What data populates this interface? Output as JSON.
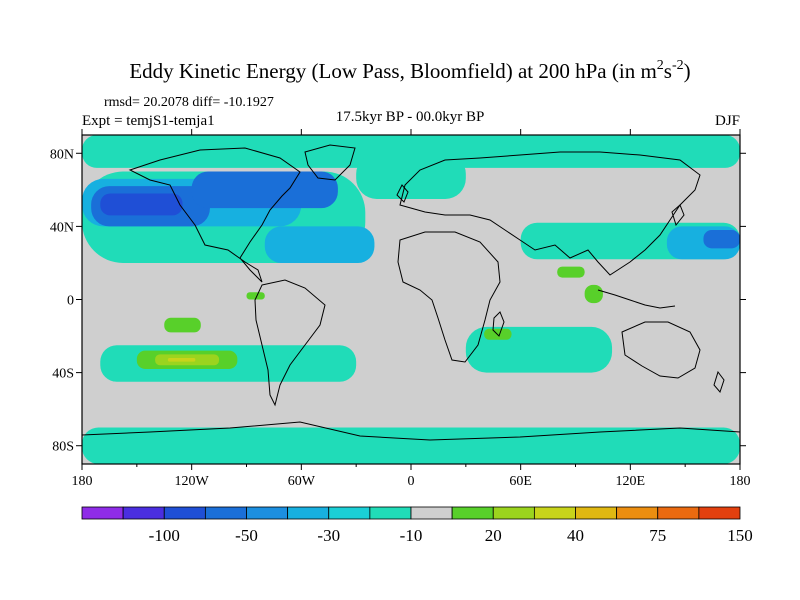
{
  "chart_data": {
    "type": "heatmap",
    "title": "Eddy Kinetic Energy (Low Pass, Bloomfield) at 200 hPa (in m",
    "title_units": {
      "sup1": "2",
      "mid": "s",
      "sup2": "-2",
      "end": ")"
    },
    "stats": "rmsd= 20.2078  diff= -10.1927",
    "left_label": "Expt = temjS1-temja1",
    "center_label": "17.5kyr BP - 00.0kyr BP",
    "right_label": "DJF",
    "x_ticks": [
      "180",
      "120W",
      "60W",
      "0",
      "60E",
      "120E",
      "180"
    ],
    "x_tick_values": [
      -180,
      -120,
      -60,
      0,
      60,
      120,
      180
    ],
    "y_ticks": [
      "80N",
      "40N",
      "0",
      "40S",
      "80S"
    ],
    "y_tick_values": [
      80,
      40,
      0,
      -40,
      -80
    ],
    "xlim": [
      -180,
      180
    ],
    "ylim": [
      -90,
      90
    ],
    "colorbar": {
      "labels": [
        "-100",
        "-50",
        "-30",
        "-10",
        "20",
        "40",
        "75",
        "150"
      ],
      "label_after_bin": [
        1,
        3,
        5,
        7,
        9,
        11,
        13,
        15
      ],
      "colors": [
        "#8f2ce8",
        "#4a2ee0",
        "#1f4fd6",
        "#1a6fd8",
        "#1c8fe0",
        "#17b0e0",
        "#1acfd6",
        "#20dcb8",
        "#cfcfcf",
        "#58d02a",
        "#9bd41e",
        "#c8d41a",
        "#e0b812",
        "#ec8e10",
        "#ea6a10",
        "#e3400e"
      ]
    },
    "map_background": "#cfcfcf",
    "regions": [
      {
        "level": "-10",
        "color": "#20dcb8",
        "lon": [
          -180,
          180
        ],
        "lat": [
          72,
          90
        ]
      },
      {
        "level": "-10",
        "color": "#20dcb8",
        "lon": [
          -180,
          -25
        ],
        "lat": [
          20,
          70
        ]
      },
      {
        "level": "-30",
        "color": "#17b0e0",
        "lon": [
          -180,
          -60
        ],
        "lat": [
          40,
          66
        ]
      },
      {
        "level": "-50",
        "color": "#1a6fd8",
        "lon": [
          -175,
          -110
        ],
        "lat": [
          40,
          62
        ]
      },
      {
        "level": "-50",
        "color": "#1a6fd8",
        "lon": [
          -120,
          -40
        ],
        "lat": [
          50,
          70
        ]
      },
      {
        "level": "-100",
        "color": "#1f4fd6",
        "lon": [
          -170,
          -125
        ],
        "lat": [
          46,
          58
        ]
      },
      {
        "level": "-30",
        "color": "#17b0e0",
        "lon": [
          -80,
          -20
        ],
        "lat": [
          20,
          40
        ]
      },
      {
        "level": "-10",
        "color": "#20dcb8",
        "lon": [
          -30,
          30
        ],
        "lat": [
          55,
          80
        ]
      },
      {
        "level": "-10",
        "color": "#20dcb8",
        "lon": [
          60,
          180
        ],
        "lat": [
          22,
          42
        ]
      },
      {
        "level": "-30",
        "color": "#17b0e0",
        "lon": [
          140,
          180
        ],
        "lat": [
          22,
          40
        ]
      },
      {
        "level": "-50",
        "color": "#1a6fd8",
        "lon": [
          160,
          180
        ],
        "lat": [
          28,
          38
        ]
      },
      {
        "level": "-10",
        "color": "#20dcb8",
        "lon": [
          -180,
          180
        ],
        "lat": [
          -90,
          -70
        ]
      },
      {
        "level": "-10",
        "color": "#20dcb8",
        "lon": [
          -170,
          -30
        ],
        "lat": [
          -45,
          -25
        ]
      },
      {
        "level": "-10",
        "color": "#20dcb8",
        "lon": [
          30,
          110
        ],
        "lat": [
          -40,
          -15
        ]
      },
      {
        "level": "20",
        "color": "#58d02a",
        "lon": [
          -150,
          -95
        ],
        "lat": [
          -38,
          -28
        ]
      },
      {
        "level": "40",
        "color": "#9bd41e",
        "lon": [
          -140,
          -105
        ],
        "lat": [
          -36,
          -30
        ]
      },
      {
        "level": "75",
        "color": "#c8d41a",
        "lon": [
          -133,
          -118
        ],
        "lat": [
          -34,
          -32
        ]
      },
      {
        "level": "20",
        "color": "#58d02a",
        "lon": [
          -135,
          -115
        ],
        "lat": [
          -18,
          -10
        ]
      },
      {
        "level": "20",
        "color": "#58d02a",
        "lon": [
          40,
          55
        ],
        "lat": [
          -22,
          -16
        ]
      },
      {
        "level": "20",
        "color": "#58d02a",
        "lon": [
          95,
          105
        ],
        "lat": [
          -2,
          8
        ]
      },
      {
        "level": "20",
        "color": "#58d02a",
        "lon": [
          -90,
          -80
        ],
        "lat": [
          0,
          4
        ]
      },
      {
        "level": "20",
        "color": "#58d02a",
        "lon": [
          80,
          95
        ],
        "lat": [
          12,
          18
        ]
      }
    ]
  }
}
